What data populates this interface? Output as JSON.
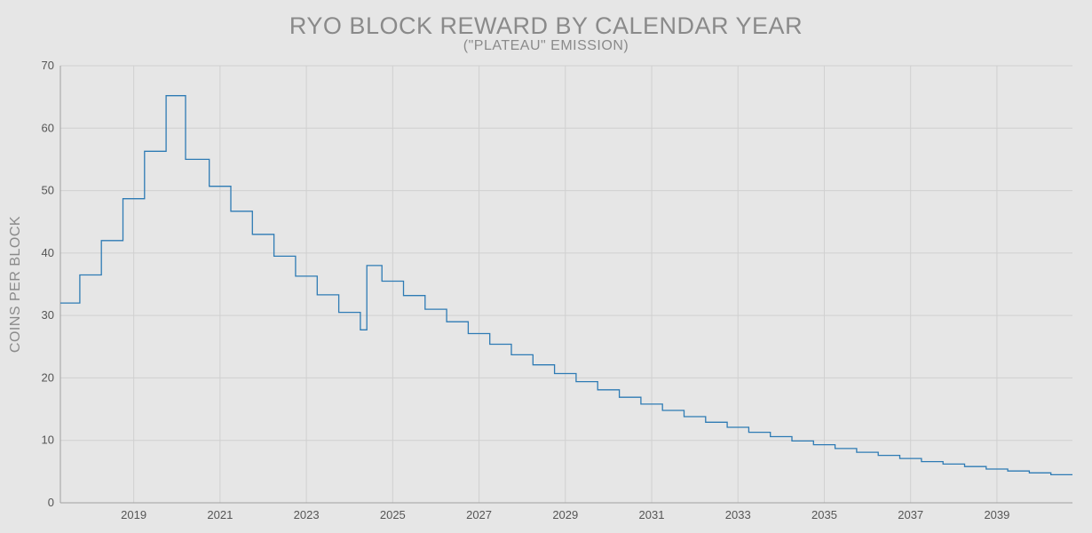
{
  "chart_data": {
    "type": "line",
    "subtype": "step",
    "title": "RYO BLOCK REWARD BY CALENDAR YEAR",
    "subtitle": "(\"PLATEAU\" EMISSION)",
    "xlabel": "",
    "ylabel": "COINS PER BLOCK",
    "xlim": [
      2017.3,
      2040.75
    ],
    "ylim": [
      0,
      70
    ],
    "y_ticks": [
      0,
      10,
      20,
      30,
      40,
      50,
      60,
      70
    ],
    "x_ticks": [
      "2019",
      "2021",
      "2023",
      "2025",
      "2027",
      "2029",
      "2031",
      "2033",
      "2035",
      "2037",
      "2039"
    ],
    "grid": true,
    "colors": {
      "line": "#2e7bb4",
      "grid": "#d0d0d0",
      "axis": "#a0a0a0"
    },
    "series": [
      {
        "x": [
          2017.3,
          2017.75,
          2018.25,
          2018.75,
          2019.25,
          2019.75,
          2020.2,
          2020.75,
          2021.25,
          2021.75,
          2022.25,
          2022.75,
          2023.25,
          2023.75,
          2024.25,
          2024.4,
          2024.75,
          2025.25,
          2025.75,
          2026.25,
          2026.75,
          2027.25,
          2027.75,
          2028.25,
          2028.75,
          2029.25,
          2029.75,
          2030.25,
          2030.75,
          2031.25,
          2031.75,
          2032.25,
          2032.75,
          2033.25,
          2033.75,
          2034.25,
          2034.75,
          2035.25,
          2035.75,
          2036.25,
          2036.75,
          2037.25,
          2037.75,
          2038.25,
          2038.75,
          2039.25,
          2039.75,
          2040.25
        ],
        "y": [
          32,
          36.5,
          42,
          48.7,
          56.3,
          65.2,
          55,
          50.7,
          46.7,
          43,
          39.5,
          36.3,
          33.3,
          30.5,
          27.7,
          38,
          35.5,
          33.2,
          31,
          29,
          27.1,
          25.4,
          23.7,
          22.1,
          20.7,
          19.4,
          18.1,
          16.9,
          15.8,
          14.8,
          13.8,
          12.9,
          12.1,
          11.3,
          10.6,
          9.9,
          9.3,
          8.7,
          8.1,
          7.6,
          7.1,
          6.6,
          6.2,
          5.8,
          5.4,
          5.1,
          4.8,
          4.5
        ],
        "x_end": 2040.75
      }
    ]
  }
}
